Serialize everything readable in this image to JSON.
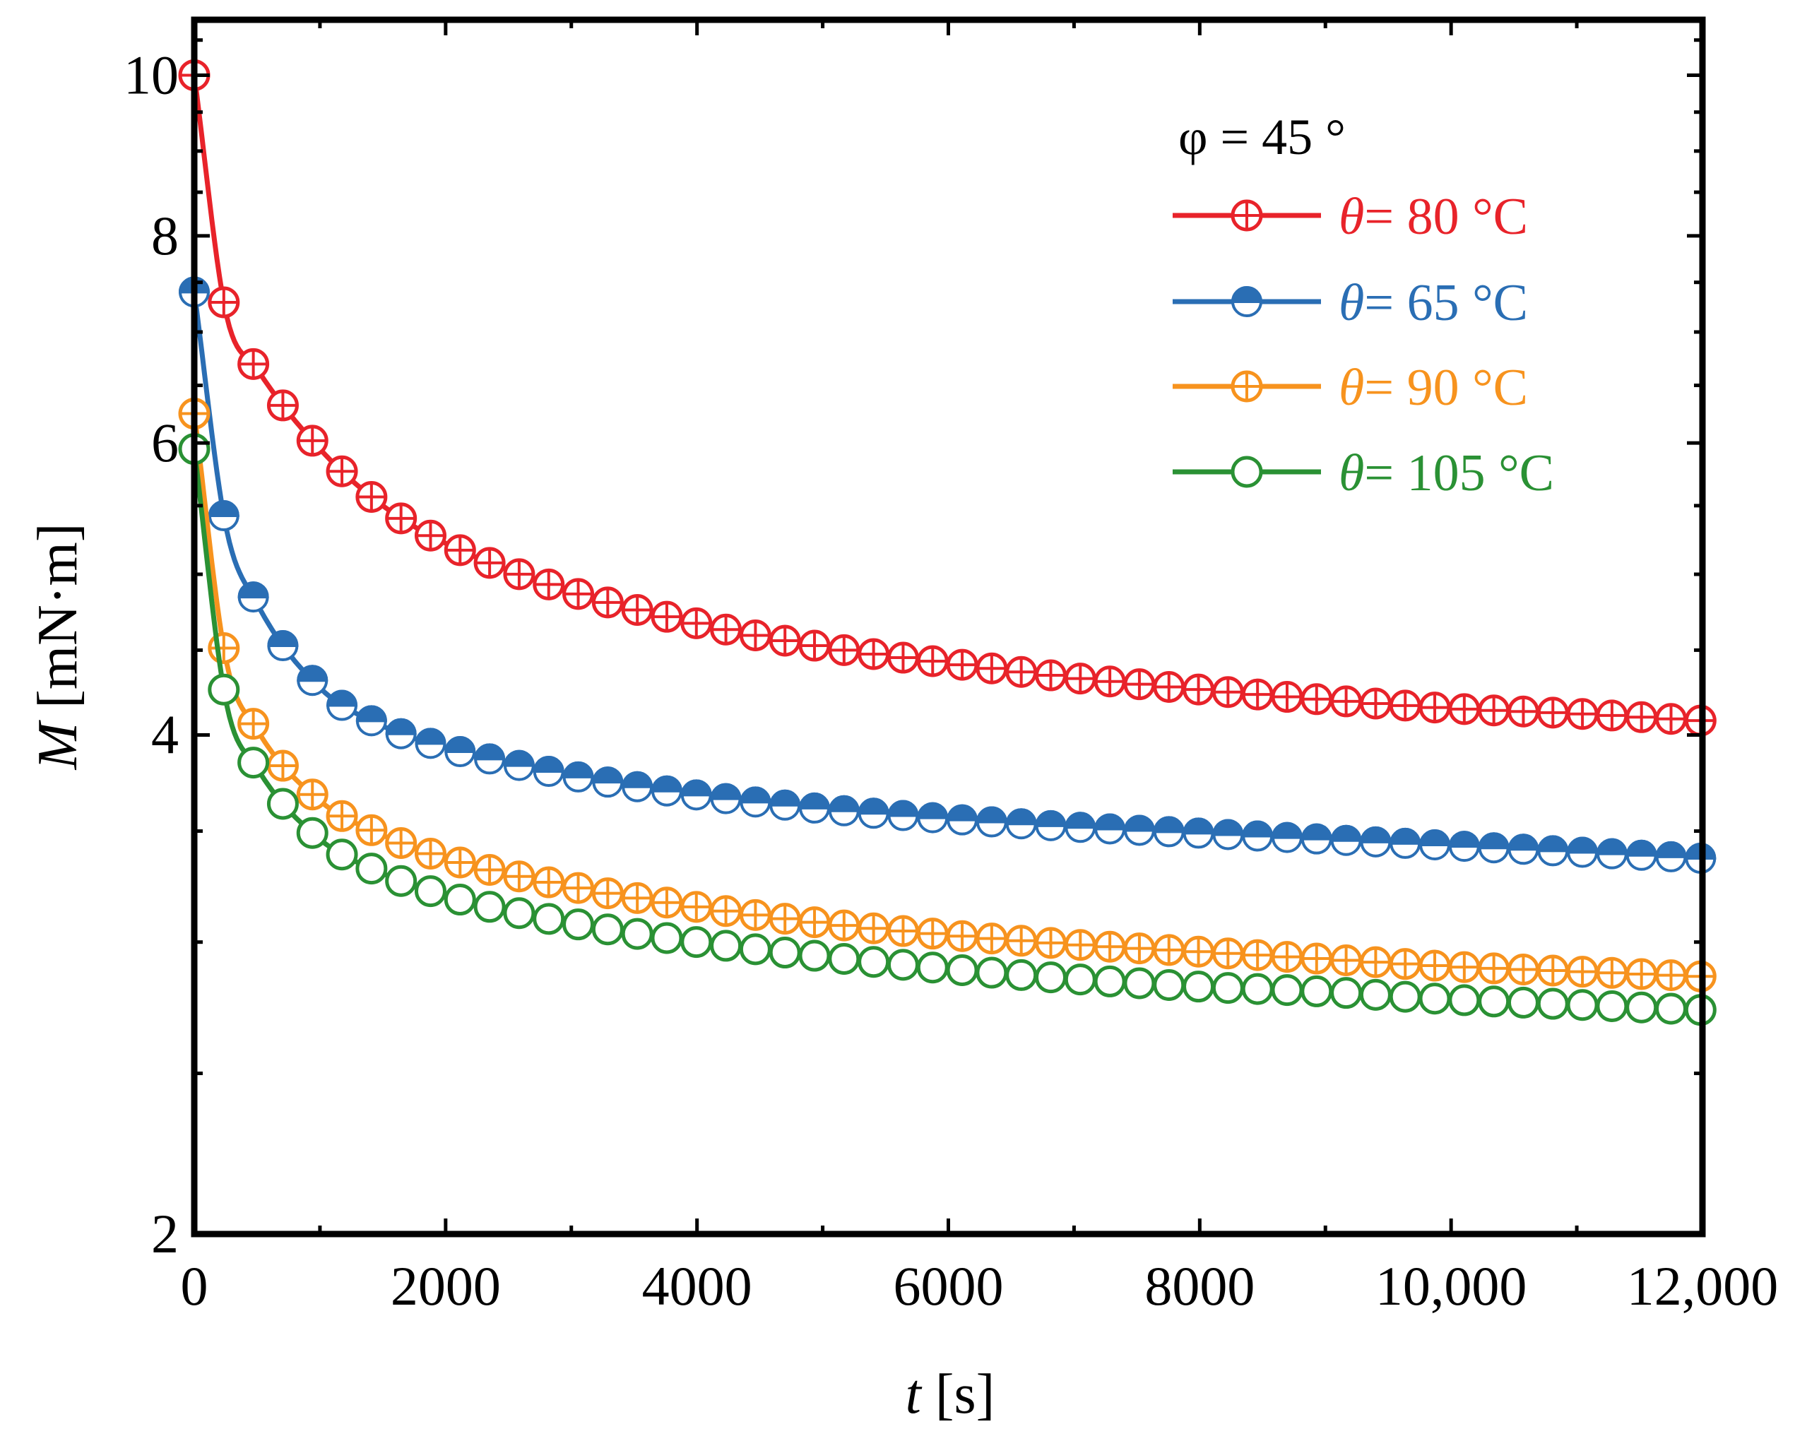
{
  "chart_data": {
    "type": "line",
    "title": "",
    "xlabel_var": "t",
    "xlabel_unit": " [s]",
    "ylabel_var": "M",
    "ylabel_unit": " [mN·m]",
    "xlim": [
      0,
      12000
    ],
    "ylim": [
      2,
      10.8
    ],
    "yscale": "log",
    "x_ticks": [
      0,
      2000,
      4000,
      6000,
      8000,
      10000,
      12000
    ],
    "x_tick_labels": [
      "0",
      "2000",
      "4000",
      "6000",
      "8000",
      "10,000",
      "12,000"
    ],
    "y_ticks": [
      2,
      4,
      6,
      8,
      10
    ],
    "y_tick_labels": [
      "2",
      "4",
      "6",
      "8",
      "10"
    ],
    "legend_title": "φ = 45 °",
    "legend_position": "top-right",
    "marker_spacing_s": 235,
    "series": [
      {
        "name": "θ = 80 °C",
        "label_var": "θ",
        "label_rest": "= 80 °C",
        "color": "#e8232a",
        "marker": "circle-plus",
        "x": [
          0,
          250,
          500,
          1000,
          1500,
          2000,
          3000,
          4000,
          5000,
          6000,
          7000,
          8000,
          9000,
          10000,
          11000,
          12000
        ],
        "values": [
          10.0,
          7.2,
          6.65,
          5.95,
          5.5,
          5.22,
          4.88,
          4.67,
          4.52,
          4.42,
          4.33,
          4.26,
          4.2,
          4.15,
          4.12,
          4.08
        ]
      },
      {
        "name": "θ = 65 °C",
        "label_var": "θ",
        "label_rest": "= 65 °C",
        "color": "#2a6eb4",
        "marker": "circle-half-filled",
        "x": [
          0,
          250,
          500,
          1000,
          1500,
          2000,
          3000,
          4000,
          5000,
          6000,
          7000,
          8000,
          9000,
          10000,
          11000,
          12000
        ],
        "values": [
          7.4,
          5.35,
          4.8,
          4.27,
          4.05,
          3.93,
          3.78,
          3.68,
          3.61,
          3.56,
          3.52,
          3.49,
          3.46,
          3.43,
          3.4,
          3.37
        ]
      },
      {
        "name": "θ = 90 °C",
        "label_var": "θ",
        "label_rest": "= 90 °C",
        "color": "#f7931e",
        "marker": "circle-plus",
        "x": [
          0,
          250,
          500,
          1000,
          1500,
          2000,
          3000,
          4000,
          5000,
          6000,
          7000,
          8000,
          9000,
          10000,
          11000,
          12000
        ],
        "values": [
          6.25,
          4.45,
          4.03,
          3.65,
          3.48,
          3.37,
          3.24,
          3.15,
          3.08,
          3.03,
          2.99,
          2.96,
          2.93,
          2.9,
          2.88,
          2.86
        ]
      },
      {
        "name": "θ = 105 °C",
        "label_var": "θ",
        "label_rest": "= 105 °C",
        "color": "#2a9134",
        "marker": "circle-open",
        "x": [
          0,
          250,
          500,
          1000,
          1500,
          2000,
          3000,
          4000,
          5000,
          6000,
          7000,
          8000,
          9000,
          10000,
          11000,
          12000
        ],
        "values": [
          5.95,
          4.2,
          3.82,
          3.46,
          3.3,
          3.2,
          3.08,
          3.0,
          2.94,
          2.89,
          2.85,
          2.82,
          2.8,
          2.77,
          2.75,
          2.73
        ]
      }
    ]
  }
}
